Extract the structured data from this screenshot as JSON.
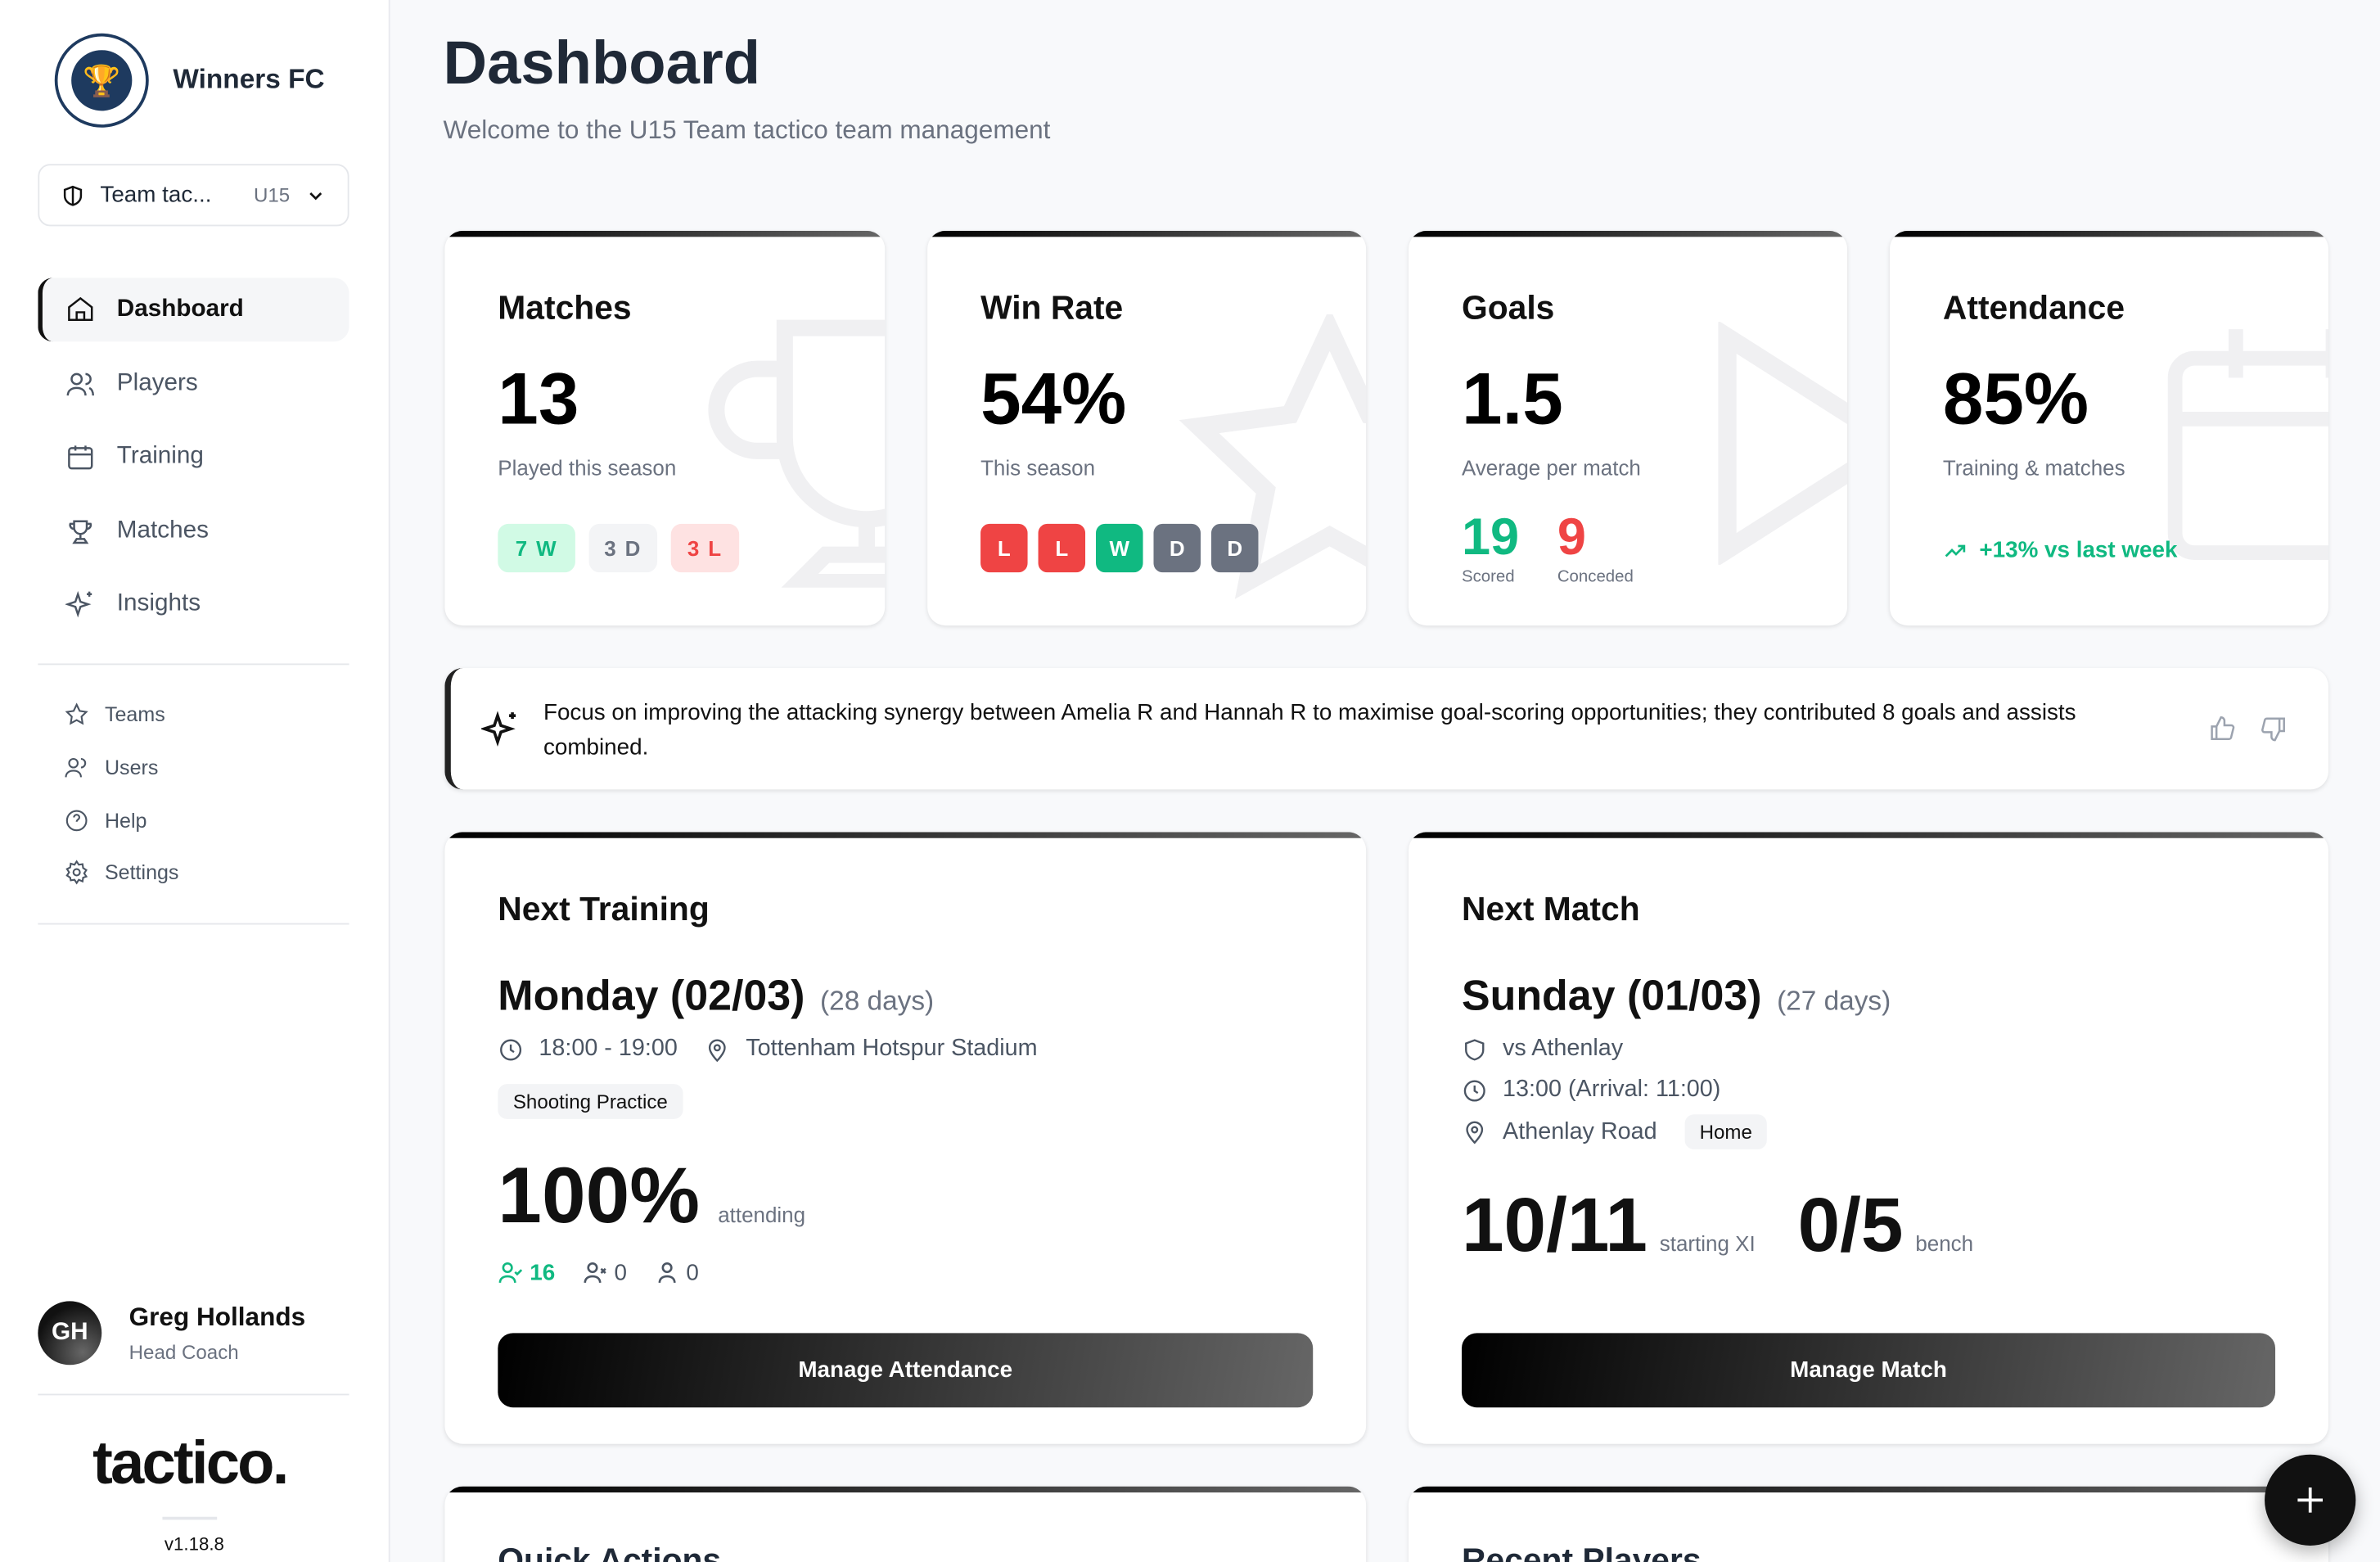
{
  "sidebar": {
    "club_name": "Winners FC",
    "team_select": {
      "name": "Team tac...",
      "age": "U15"
    },
    "nav": [
      {
        "label": "Dashboard",
        "icon": "home-icon"
      },
      {
        "label": "Players",
        "icon": "users-icon"
      },
      {
        "label": "Training",
        "icon": "calendar-icon"
      },
      {
        "label": "Matches",
        "icon": "trophy-icon"
      },
      {
        "label": "Insights",
        "icon": "sparkles-icon"
      }
    ],
    "secondary": [
      {
        "label": "Teams",
        "icon": "star-icon"
      },
      {
        "label": "Users",
        "icon": "users-icon"
      },
      {
        "label": "Help",
        "icon": "help-circle-icon"
      },
      {
        "label": "Settings",
        "icon": "gear-icon"
      }
    ],
    "user": {
      "initials": "GH",
      "name": "Greg Hollands",
      "role": "Head Coach"
    },
    "brand": "tactico.",
    "version": "v1.18.8"
  },
  "header": {
    "title": "Dashboard",
    "subtitle": "Welcome to the U15 Team tactico team management"
  },
  "stats": {
    "matches": {
      "title": "Matches",
      "value": "13",
      "caption": "Played this season",
      "wins": "7 W",
      "draws": "3 D",
      "losses": "3 L"
    },
    "win_rate": {
      "title": "Win Rate",
      "value": "54%",
      "caption": "This season",
      "form": [
        "L",
        "L",
        "W",
        "D",
        "D"
      ]
    },
    "goals": {
      "title": "Goals",
      "value": "1.5",
      "caption": "Average per match",
      "scored": "19",
      "scored_label": "Scored",
      "conceded": "9",
      "conceded_label": "Conceded"
    },
    "attendance": {
      "title": "Attendance",
      "value": "85%",
      "caption": "Training & matches",
      "trend": "+13% vs last week"
    }
  },
  "insight": {
    "text": "Focus on improving the attacking synergy between Amelia R and Hannah R to maximise goal-scoring opportunities; they contributed 8 goals and assists combined."
  },
  "next_training": {
    "title": "Next Training",
    "date": "Monday (02/03)",
    "days": "(28 days)",
    "time": "18:00 - 19:00",
    "location": "Tottenham Hotspur Stadium",
    "type": "Shooting Practice",
    "attendance": "100%",
    "attendance_label": "attending",
    "available": "16",
    "unavailable": "0",
    "unknown": "0",
    "button": "Manage Attendance"
  },
  "next_match": {
    "title": "Next Match",
    "date": "Sunday (01/03)",
    "days": "(27 days)",
    "opponent": "vs Athenlay",
    "time": "13:00 (Arrival: 11:00)",
    "location": "Athenlay Road",
    "venue": "Home",
    "starting": "10/11",
    "starting_label": "starting XI",
    "bench": "0/5",
    "bench_label": "bench",
    "button": "Manage Match"
  },
  "bottom": {
    "quick_actions": "Quick Actions",
    "recent_players": "Recent Players"
  },
  "colors": {
    "win": "#10b981",
    "loss": "#ef4444",
    "draw": "#6b7280"
  }
}
